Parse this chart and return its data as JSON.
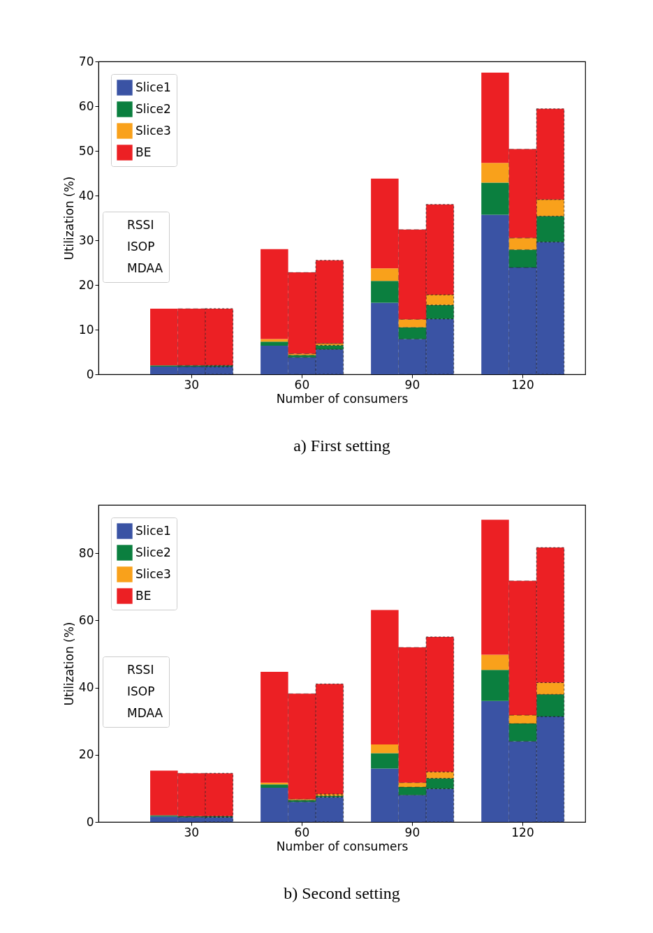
{
  "chart_data": [
    {
      "type": "bar",
      "title": "a) First setting",
      "xlabel": "Number of consumers",
      "ylabel": "Utilization (%)",
      "stacked": true,
      "legend": "top left",
      "grid": false,
      "categories": [
        null,
        "30",
        null,
        null,
        "60",
        null,
        null,
        "90",
        null,
        null,
        "120",
        null
      ],
      "annotations": [
        "RSSI",
        "ISOP",
        "MDAA"
      ],
      "ylim": [
        0,
        70
      ],
      "yticks": [
        0,
        10,
        20,
        30,
        40,
        50,
        60,
        70
      ],
      "series": [
        {
          "name": "Slice1",
          "color": "#3a53a4",
          "values": [
            1.7,
            1.7,
            1.7,
            6.4,
            3.8,
            5.6,
            16.0,
            7.9,
            12.4,
            35.7,
            23.9,
            29.6
          ]
        },
        {
          "name": "Slice2",
          "color": "#0b7f3f",
          "values": [
            0.3,
            0.3,
            0.3,
            0.9,
            0.5,
            0.9,
            4.9,
            2.6,
            3.1,
            7.2,
            4.0,
            5.8
          ]
        },
        {
          "name": "Slice3",
          "color": "#f9a11b",
          "values": [
            null,
            null,
            null,
            0.6,
            0.3,
            0.4,
            2.8,
            1.8,
            2.3,
            4.4,
            2.6,
            3.7
          ]
        },
        {
          "name": "BE",
          "color": "#ec2024",
          "values": [
            12.7,
            12.7,
            12.7,
            20.1,
            18.2,
            18.6,
            20.1,
            20.1,
            20.2,
            20.2,
            19.9,
            20.3
          ]
        }
      ]
    },
    {
      "type": "bar",
      "title": "b) Second setting",
      "xlabel": "Number of consumers",
      "ylabel": "Utilization (%)",
      "stacked": true,
      "legend": "top left",
      "grid": false,
      "categories": [
        null,
        "30",
        null,
        null,
        "60",
        null,
        null,
        "90",
        null,
        null,
        "120",
        null
      ],
      "annotations": [
        "RSSI",
        "ISOP",
        "MDAA"
      ],
      "ylim": [
        0,
        94.4
      ],
      "yticks": [
        0,
        20,
        40,
        60,
        80
      ],
      "series": [
        {
          "name": "Slice1",
          "color": "#3a53a4",
          "values": [
            1.6,
            1.4,
            1.4,
            10.2,
            6.0,
            7.4,
            15.9,
            8.0,
            9.9,
            36.0,
            24.0,
            31.4
          ]
        },
        {
          "name": "Slice2",
          "color": "#0b7f3f",
          "values": [
            0.4,
            0.3,
            0.3,
            1.0,
            0.5,
            0.4,
            4.6,
            2.4,
            3.1,
            9.3,
            5.3,
            6.6
          ]
        },
        {
          "name": "Slice3",
          "color": "#f9a11b",
          "values": [
            null,
            null,
            null,
            0.5,
            0.3,
            0.5,
            2.6,
            1.3,
            1.9,
            4.5,
            2.5,
            3.5
          ]
        },
        {
          "name": "BE",
          "color": "#ec2024",
          "values": [
            13.3,
            12.8,
            12.8,
            33.0,
            31.4,
            32.8,
            40.0,
            40.3,
            40.2,
            40.2,
            40.0,
            40.2
          ]
        }
      ]
    }
  ]
}
